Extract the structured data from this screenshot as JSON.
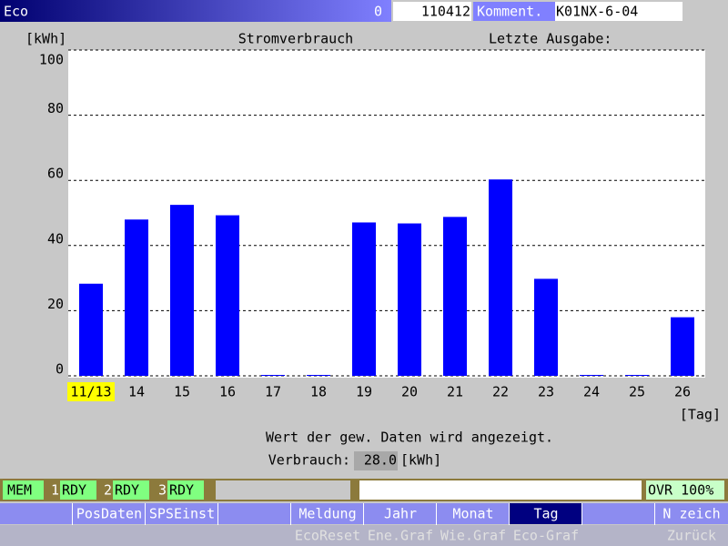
{
  "header": {
    "mode": "Eco",
    "counter": "0",
    "program": "110412",
    "comment_label": "Komment.",
    "comment": "K01NX-6-04"
  },
  "chart_data": {
    "type": "bar",
    "title": "Stromverbrauch",
    "annotation": "Letzte Ausgabe:",
    "y_label": "[kWh]",
    "x_label": "[Tag]",
    "categories": [
      "11/13",
      "14",
      "15",
      "16",
      "17",
      "18",
      "19",
      "20",
      "21",
      "22",
      "23",
      "24",
      "25",
      "26"
    ],
    "values": [
      28,
      47.7,
      52.2,
      49,
      0,
      0,
      46.8,
      46.5,
      48.5,
      60,
      29.5,
      0,
      0,
      17.7
    ],
    "color": "#0000ff",
    "selected": 0,
    "selected_color": "#ffff00",
    "ylim": [
      0,
      100
    ],
    "yticks": [
      0,
      20,
      40,
      60,
      80,
      100
    ],
    "grid": true
  },
  "info": {
    "message": "Wert der gew. Daten wird angezeigt.",
    "label": "Verbrauch:",
    "value": "28.0",
    "unit": "[kWh]"
  },
  "status": {
    "mode": "MEM",
    "channels": [
      {
        "number": "1",
        "state": "RDY"
      },
      {
        "number": "2",
        "state": "RDY"
      },
      {
        "number": "3",
        "state": "RDY"
      }
    ],
    "override": "OVR 100%"
  },
  "softkeys": {
    "row1": [
      "PosDaten",
      "SPSEinst",
      "Meldung",
      "Jahr",
      "Monat",
      "Tag",
      "N zeich"
    ],
    "row2": [
      "EcoReset",
      "Ene.Graf",
      "Wie.Graf",
      "Eco-Graf",
      "Zurück"
    ]
  }
}
